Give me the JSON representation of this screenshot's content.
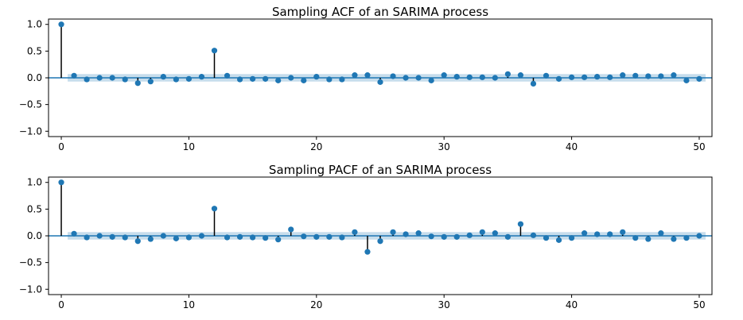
{
  "colors": {
    "marker": "#1f77b4",
    "stem": "#000000",
    "zero_line": "#1f77b4",
    "confidence_band": "#1f77b4"
  },
  "chart_data": [
    {
      "type": "stem",
      "title": "Sampling ACF of an SARIMA process",
      "xlabel": "",
      "ylabel": "",
      "xlim": [
        -1,
        51
      ],
      "ylim": [
        -1.1,
        1.1
      ],
      "xticks": [
        0,
        10,
        20,
        30,
        40,
        50
      ],
      "xtick_labels": [
        "0",
        "10",
        "20",
        "30",
        "40",
        "50"
      ],
      "yticks": [
        1.0,
        0.5,
        0.0,
        -0.5,
        -1.0
      ],
      "ytick_labels": [
        "1.0",
        "0.5",
        "0.0",
        "−0.5",
        "−1.0"
      ],
      "confidence_band": 0.07,
      "lags": [
        0,
        1,
        2,
        3,
        4,
        5,
        6,
        7,
        8,
        9,
        10,
        11,
        12,
        13,
        14,
        15,
        16,
        17,
        18,
        19,
        20,
        21,
        22,
        23,
        24,
        25,
        26,
        27,
        28,
        29,
        30,
        31,
        32,
        33,
        34,
        35,
        36,
        37,
        38,
        39,
        40,
        41,
        42,
        43,
        44,
        45,
        46,
        47,
        48,
        49,
        50
      ],
      "values": [
        1.0,
        0.04,
        -0.03,
        0.0,
        0.0,
        -0.03,
        -0.1,
        -0.07,
        0.02,
        -0.03,
        -0.02,
        0.02,
        0.51,
        0.04,
        -0.03,
        -0.02,
        -0.02,
        -0.05,
        0.0,
        -0.05,
        0.02,
        -0.03,
        -0.03,
        0.05,
        0.05,
        -0.08,
        0.03,
        0.0,
        0.0,
        -0.05,
        0.05,
        0.02,
        0.01,
        0.01,
        0.0,
        0.07,
        0.05,
        -0.11,
        0.04,
        -0.02,
        0.01,
        0.01,
        0.02,
        0.01,
        0.05,
        0.04,
        0.03,
        0.03,
        0.05,
        -0.05,
        -0.02
      ]
    },
    {
      "type": "stem",
      "title": "Sampling PACF of an SARIMA process",
      "xlabel": "",
      "ylabel": "",
      "xlim": [
        -1,
        51
      ],
      "ylim": [
        -1.1,
        1.1
      ],
      "xticks": [
        0,
        10,
        20,
        30,
        40,
        50
      ],
      "xtick_labels": [
        "0",
        "10",
        "20",
        "30",
        "40",
        "50"
      ],
      "yticks": [
        1.0,
        0.5,
        0.0,
        -0.5,
        -1.0
      ],
      "ytick_labels": [
        "1.0",
        "0.5",
        "0.0",
        "−0.5",
        "−1.0"
      ],
      "confidence_band": 0.07,
      "lags": [
        0,
        1,
        2,
        3,
        4,
        5,
        6,
        7,
        8,
        9,
        10,
        11,
        12,
        13,
        14,
        15,
        16,
        17,
        18,
        19,
        20,
        21,
        22,
        23,
        24,
        25,
        26,
        27,
        28,
        29,
        30,
        31,
        32,
        33,
        34,
        35,
        36,
        37,
        38,
        39,
        40,
        41,
        42,
        43,
        44,
        45,
        46,
        47,
        48,
        49,
        50
      ],
      "values": [
        1.0,
        0.04,
        -0.03,
        0.0,
        -0.02,
        -0.03,
        -0.1,
        -0.06,
        0.0,
        -0.05,
        -0.03,
        0.0,
        0.51,
        -0.03,
        -0.02,
        -0.03,
        -0.04,
        -0.07,
        0.12,
        -0.01,
        -0.02,
        -0.02,
        -0.03,
        0.07,
        -0.3,
        -0.1,
        0.07,
        0.03,
        0.05,
        -0.01,
        -0.02,
        -0.02,
        0.01,
        0.07,
        0.05,
        -0.02,
        0.22,
        0.01,
        -0.04,
        -0.08,
        -0.04,
        0.05,
        0.03,
        0.03,
        0.07,
        -0.04,
        -0.06,
        0.05,
        -0.06,
        -0.04,
        0.0
      ]
    }
  ]
}
